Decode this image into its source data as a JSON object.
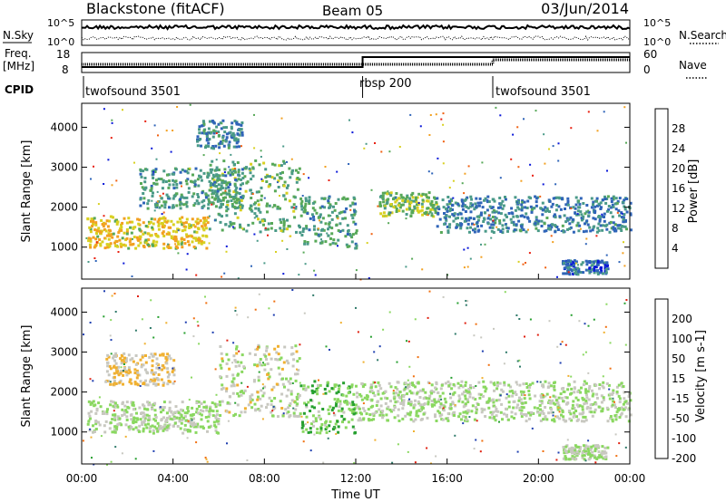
{
  "header": {
    "title": "Blackstone (fitACF)",
    "beam": "Beam 05",
    "date": "03/Jun/2014"
  },
  "nsky_panel": {
    "label": "N.Sky",
    "right_label": "N.Search",
    "left_ticks": [
      "10^5",
      "10^0"
    ],
    "right_ticks": [
      "10^5",
      "10^0"
    ]
  },
  "freq_panel": {
    "label_line1": "Freq.",
    "label_line2": "[MHz]",
    "right_label": "Nave",
    "left_ticks": [
      "18",
      "8"
    ],
    "right_ticks": [
      "60",
      "0"
    ]
  },
  "cpid": {
    "label": "CPID",
    "segments": [
      {
        "name": "twofsound 3501",
        "start_h": 0,
        "end_h": 12.3
      },
      {
        "name": "rbsp 200",
        "start_h": 12.3,
        "end_h": 18.0
      },
      {
        "name": "twofsound 3501",
        "start_h": 18.0,
        "end_h": 24
      }
    ]
  },
  "x_axis": {
    "label": "Time UT",
    "ticks": [
      "00:00",
      "04:00",
      "08:00",
      "12:00",
      "16:00",
      "20:00",
      "00:00"
    ],
    "tick_hours": [
      0,
      4,
      8,
      12,
      16,
      20,
      24
    ]
  },
  "y_axis": {
    "label": "Slant Range [km]",
    "ticks": [
      "4000",
      "3000",
      "2000",
      "1000"
    ],
    "tick_values": [
      4000,
      3000,
      2000,
      1000
    ],
    "range": [
      200,
      4600
    ]
  },
  "power_colorbar": {
    "label": "Power [dB]",
    "ticks": [
      "28",
      "24",
      "20",
      "16",
      "12",
      "8",
      "4"
    ],
    "colors": [
      "#0a18d8",
      "#2f64b8",
      "#4a9a88",
      "#57a858",
      "#d8d020",
      "#f2a020",
      "#f06010",
      "#e82010"
    ]
  },
  "velocity_colorbar": {
    "label": "Velocity [m s-1]",
    "ticks": [
      "200",
      "100",
      "50",
      "15",
      "-15",
      "-50",
      "-100",
      "-200"
    ],
    "colors": [
      "#1f3fb0",
      "#2f7a6a",
      "#27a030",
      "#8ad860",
      "#c8c8c0",
      "#f0b030",
      "#f07010",
      "#e02010"
    ]
  },
  "chart_data": [
    {
      "type": "heatmap",
      "title": "Power",
      "xlabel": "Time UT",
      "ylabel": "Slant Range [km]",
      "xlim": [
        0,
        24
      ],
      "ylim": [
        200,
        4600
      ],
      "zlabel": "Power [dB]",
      "zlim": [
        0,
        30
      ],
      "bands": [
        {
          "t0": 0.2,
          "t1": 5.5,
          "r0": 1000,
          "r1": 1800,
          "z": 18
        },
        {
          "t0": 5.5,
          "t1": 9.5,
          "r0": 1400,
          "r1": 3200,
          "z": 12
        },
        {
          "t0": 9.5,
          "t1": 12.0,
          "r0": 1000,
          "r1": 2300,
          "z": 10
        },
        {
          "t0": 13.0,
          "t1": 15.5,
          "r0": 1800,
          "r1": 2400,
          "z": 14
        },
        {
          "t0": 15.5,
          "t1": 24,
          "r0": 1400,
          "r1": 2300,
          "z": 8
        },
        {
          "t0": 2.5,
          "t1": 7.0,
          "r0": 2000,
          "r1": 3000,
          "z": 10
        },
        {
          "t0": 5.0,
          "t1": 7.0,
          "r0": 3500,
          "r1": 4200,
          "z": 8
        },
        {
          "t0": 21.0,
          "t1": 23.0,
          "r0": 350,
          "r1": 700,
          "z": 6
        }
      ]
    },
    {
      "type": "heatmap",
      "title": "Velocity",
      "xlabel": "Time UT",
      "ylabel": "Slant Range [km]",
      "xlim": [
        0,
        24
      ],
      "ylim": [
        200,
        4600
      ],
      "zlabel": "Velocity [m s-1]",
      "zlim": [
        -200,
        200
      ],
      "bands": [
        {
          "t0": 0.2,
          "t1": 6.0,
          "r0": 1000,
          "r1": 1800,
          "z": 0
        },
        {
          "t0": 1.0,
          "t1": 4.0,
          "r0": 2200,
          "r1": 3000,
          "z": -50
        },
        {
          "t0": 6.0,
          "t1": 9.5,
          "r0": 1400,
          "r1": 3200,
          "z": -15
        },
        {
          "t0": 9.5,
          "t1": 12.0,
          "r0": 1000,
          "r1": 2300,
          "z": 40
        },
        {
          "t0": 12.0,
          "t1": 24,
          "r0": 1300,
          "r1": 2300,
          "z": 0
        },
        {
          "t0": 21.0,
          "t1": 23.0,
          "r0": 350,
          "r1": 700,
          "z": 0
        }
      ]
    }
  ]
}
